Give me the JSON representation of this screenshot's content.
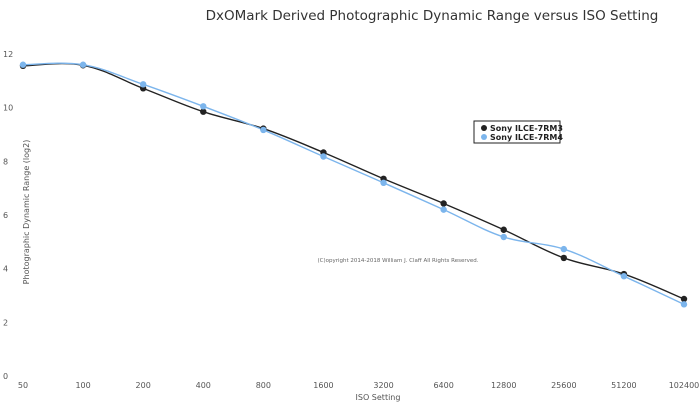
{
  "chart_data": {
    "type": "line",
    "title": "DxOMark Derived Photographic Dynamic Range versus ISO Setting",
    "xlabel": "ISO Setting",
    "ylabel": "Photographic Dynamic Range (log2)",
    "categories": [
      "50",
      "100",
      "200",
      "400",
      "800",
      "1600",
      "3200",
      "6400",
      "12800",
      "25600",
      "51200",
      "102400"
    ],
    "ylim": [
      0,
      12
    ],
    "yticks": [
      "0",
      "2",
      "4",
      "6",
      "8",
      "10",
      "12"
    ],
    "grid": false,
    "legend_position": "right",
    "annotation": "(C)opyright 2014-2018 William J. Claff All Rights Reserved.",
    "series": [
      {
        "name": "Sony ILCE-7RM3",
        "color": "#222222",
        "values": [
          11.56,
          11.58,
          10.72,
          9.85,
          9.22,
          8.33,
          7.35,
          6.43,
          5.45,
          4.4,
          3.8,
          2.87
        ]
      },
      {
        "name": "Sony ILCE-7RM4",
        "color": "#7cb5ec",
        "values": [
          11.6,
          11.6,
          10.87,
          10.05,
          9.17,
          8.18,
          7.2,
          6.2,
          5.18,
          4.73,
          3.72,
          2.67
        ]
      }
    ]
  }
}
